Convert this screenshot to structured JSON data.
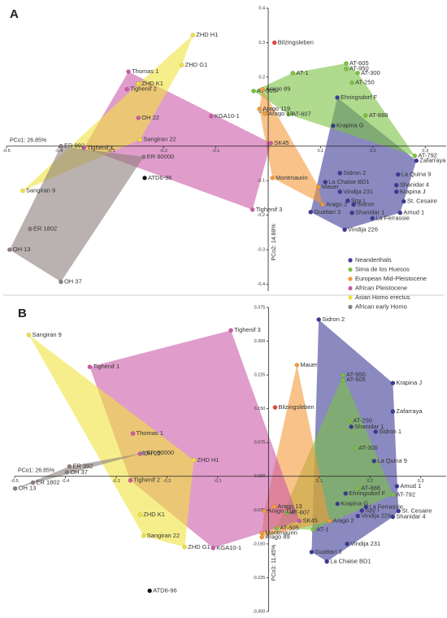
{
  "chart_data": [
    {
      "type": "scatter",
      "panel": "A",
      "xlabel": "PCo1: 26.85%",
      "ylabel": "PCo2: 14.88%",
      "xlim": [
        -0.5,
        0.34
      ],
      "ylim": [
        -0.42,
        0.4
      ],
      "xticks": [
        -0.5,
        -0.4,
        -0.3,
        -0.2,
        -0.1,
        0.1,
        0.2,
        0.3
      ],
      "yticks": [
        0.4,
        0.3,
        0.2,
        0.1,
        -0.1,
        -0.2,
        -0.3,
        -0.4
      ],
      "hulls": true,
      "legend": "lower right",
      "series": [
        {
          "name": "Neanderthals",
          "color": "#3c3a96",
          "labels": [
            "Ehringsdorf F",
            "Krapina G",
            "Zafarraya",
            "Sidron 2",
            "La Chaise BD1",
            "La Quina 9",
            "Shanidar 4",
            "Krapina J",
            "Vindija 231",
            "Spy I",
            "Sidron",
            "St. Cesaire",
            "Guattari 3",
            "Shanidar 1",
            "Amud 1",
            "La Ferrassie",
            "Vindija 226"
          ],
          "x": [
            0.132,
            0.124,
            0.283,
            0.137,
            0.109,
            0.248,
            0.245,
            0.245,
            0.137,
            0.152,
            0.163,
            0.259,
            0.081,
            0.16,
            0.252,
            0.199,
            0.146
          ],
          "y": [
            0.141,
            0.059,
            -0.042,
            -0.078,
            -0.104,
            -0.082,
            -0.113,
            -0.132,
            -0.132,
            -0.158,
            -0.169,
            -0.16,
            -0.191,
            -0.193,
            -0.193,
            -0.209,
            -0.242
          ]
        },
        {
          "name": "Sima de los Huesos",
          "color": "#7cc242",
          "labels": [
            "AT-1",
            "AT-605",
            "AT-950",
            "AT-300",
            "AT-250",
            "AT-505",
            "AT-607",
            "AT-888",
            "AT-792"
          ],
          "x": [
            0.047,
            0.149,
            0.149,
            0.171,
            0.16,
            -0.028,
            0.039,
            0.186,
            0.28
          ],
          "y": [
            0.212,
            0.24,
            0.224,
            0.212,
            0.184,
            0.16,
            0.092,
            0.089,
            -0.028
          ]
        },
        {
          "name": "European Mid-Pleistocene",
          "color": "#f39a3b",
          "labels": [
            "Arago 89",
            "Arago 119",
            "Arago 13",
            "Montmaurin",
            "Mauer",
            "Arago 2"
          ],
          "x": [
            -0.011,
            -0.017,
            -0.006,
            0.008,
            0.096,
            0.104
          ],
          "y": [
            0.165,
            0.108,
            0.094,
            -0.092,
            -0.118,
            -0.169
          ]
        },
        {
          "name": "African Pleistocene",
          "color": "#cc5aa8",
          "labels": [
            "Thomas 1",
            "Tighenif 2",
            "OH 22",
            "KGA10-1",
            "Tighenif 1",
            "Tighenif 3",
            "SK45"
          ],
          "x": [
            -0.267,
            -0.27,
            -0.248,
            -0.109,
            -0.352,
            -0.03,
            0.005
          ],
          "y": [
            0.216,
            0.165,
            0.082,
            0.087,
            -0.005,
            -0.184,
            0.009
          ]
        },
        {
          "name": "Asian Homo erectus",
          "color": "#f0e23c",
          "labels": [
            "ZHD H1",
            "ZHD G1",
            "ZHD K1",
            "Sangiran 22",
            "Sangiran 9"
          ],
          "x": [
            -0.144,
            -0.165,
            -0.248,
            -0.245,
            -0.469
          ],
          "y": [
            0.322,
            0.235,
            0.181,
            0.019,
            -0.129
          ]
        },
        {
          "name": "African early Homo",
          "color": "#8c7f7c",
          "labels": [
            "ER 992",
            "ER 60000",
            "ER 1802",
            "OH 13",
            "OH 37"
          ],
          "x": [
            -0.396,
            -0.238,
            -0.455,
            -0.494,
            -0.396
          ],
          "y": [
            0,
            -0.031,
            -0.24,
            -0.3,
            -0.393
          ]
        },
        {
          "color": "#e8443a",
          "labels": [
            "Bilzingsleben"
          ],
          "x": [
            0.012
          ],
          "y": [
            0.3
          ]
        },
        {
          "color": "#111111",
          "labels": [
            "ATD6-96"
          ],
          "x": [
            -0.236
          ],
          "y": [
            -0.092
          ]
        }
      ]
    },
    {
      "type": "scatter",
      "panel": "B",
      "xlabel": "PCo1: 26.85%",
      "ylabel": "PCo3: 11.45%",
      "xlim": [
        -0.5,
        0.35
      ],
      "ylim": [
        -0.3,
        0.375
      ],
      "xticks": [
        -0.5,
        -0.4,
        -0.3,
        -0.2,
        -0.1,
        0.1,
        0.2,
        0.3
      ],
      "yticks": [
        0.375,
        {
          "value": 0.3,
          "label": "0.300"
        },
        0.225,
        {
          "value": 0.15,
          "label": "0.150"
        },
        0.075,
        {
          "value": 0,
          "label": "0.000"
        },
        -0.075,
        {
          "value": -0.15,
          "label": "-0.150"
        },
        -0.225,
        {
          "value": -0.3,
          "label": "-0.300"
        }
      ],
      "hulls": true,
      "series": [
        {
          "color": "#3c3a96",
          "labels": [
            "Sidron 2",
            "Krapina J",
            "Zafarraya",
            "Shanidar 1",
            "Sidron 1",
            "La Quina 9",
            "Amud 1",
            "Ehringsdorf F",
            "Krapina G",
            "La Ferrassie",
            "Spy I",
            "St. Cesaire",
            "Shanidar 4",
            "Vindija 226",
            "Vindija 231",
            "Guattari 3",
            "La Chaise BD1"
          ],
          "x": [
            0.099,
            0.245,
            0.245,
            0.163,
            0.211,
            0.208,
            0.253,
            0.152,
            0.136,
            0.192,
            0.184,
            0.256,
            0.245,
            0.176,
            0.155,
            0.085,
            0.115
          ],
          "y": [
            0.348,
            0.207,
            0.144,
            0.11,
            0.099,
            0.034,
            -0.022,
            -0.038,
            -0.061,
            -0.068,
            -0.076,
            -0.077,
            -0.09,
            -0.088,
            -0.15,
            -0.168,
            -0.189
          ]
        },
        {
          "color": "#7cc242",
          "labels": [
            "AT-950",
            "AT-605",
            "AT-250",
            "AT-300",
            "AT-888",
            "AT-792",
            "AT-505",
            "AT-607",
            "AT-1"
          ],
          "x": [
            0.147,
            0.147,
            0.16,
            0.171,
            0.176,
            0.245,
            0.016,
            0.037,
            0.088
          ],
          "y": [
            0.225,
            0.214,
            0.123,
            0.063,
            -0.027,
            -0.041,
            -0.115,
            -0.081,
            -0.119
          ]
        },
        {
          "color": "#f39a3b",
          "labels": [
            "Mauer",
            "Arago 119",
            "Arago 13",
            "Montmaurin",
            "Arago 89",
            "Arago 2"
          ],
          "x": [
            0.056,
            -0.008,
            0.011,
            -0.013,
            -0.013,
            0.12
          ],
          "y": [
            0.247,
            -0.077,
            -0.067,
            -0.126,
            -0.135,
            -0.099
          ]
        },
        {
          "color": "#cc5aa8",
          "labels": [
            "Tighenif 1",
            "Tighenif 3",
            "Thomas 1",
            "OH 22",
            "Tighenif 2",
            "SK45",
            "KGA10-1"
          ],
          "x": [
            -0.352,
            -0.074,
            -0.267,
            -0.253,
            -0.272,
            0.061,
            -0.109
          ],
          "y": [
            0.243,
            0.324,
            0.095,
            0.05,
            -0.009,
            -0.099,
            -0.159
          ]
        },
        {
          "color": "#f0e23c",
          "labels": [
            "Sangiran 9",
            "ZHD H1",
            "ZHD K1",
            "Sangiran 22",
            "ZHD G1"
          ],
          "x": [
            -0.472,
            -0.147,
            -0.253,
            -0.246,
            -0.165
          ],
          "y": [
            0.314,
            0.036,
            -0.085,
            -0.132,
            -0.157
          ]
        },
        {
          "color": "#8c7f7c",
          "labels": [
            "ER 992",
            "OH 37",
            "ER 1802",
            "OH 13",
            "ER 60000"
          ],
          "x": [
            -0.392,
            -0.397,
            -0.464,
            -0.499,
            -0.246
          ],
          "y": [
            0.022,
            0.009,
            -0.014,
            -0.027,
            0.052
          ]
        },
        {
          "color": "#e8443a",
          "labels": [
            "Bilzingsleben"
          ],
          "x": [
            0.013
          ],
          "y": [
            0.153
          ]
        },
        {
          "color": "#111111",
          "labels": [
            "ATD6-96"
          ],
          "x": [
            -0.234
          ],
          "y": [
            -0.254
          ]
        }
      ]
    }
  ]
}
